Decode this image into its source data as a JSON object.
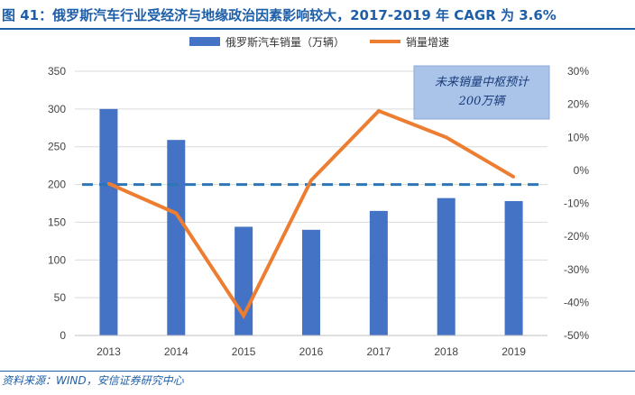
{
  "figure_title": "图 41：俄罗斯汽车行业受经济与地缘政治因素影响较大，2017-2019 年 CAGR 为 3.6%",
  "source": "资料来源：WIND，安信证券研究中心",
  "chart_data": {
    "type": "bar",
    "categories": [
      "2013",
      "2014",
      "2015",
      "2016",
      "2017",
      "2018",
      "2019"
    ],
    "series": [
      {
        "name": "俄罗斯汽车销量（万辆）",
        "type": "bar",
        "axis": "left",
        "color": "#4472c4",
        "values": [
          300,
          259,
          144,
          140,
          165,
          182,
          178
        ]
      },
      {
        "name": "销量增速",
        "type": "line",
        "axis": "right",
        "color": "#ed7d31",
        "values": [
          -4,
          -13,
          -44,
          -3,
          18,
          10,
          -2
        ]
      }
    ],
    "y_left": {
      "min": 0,
      "max": 350,
      "step": 50
    },
    "y_right": {
      "min": -50,
      "max": 30,
      "step": 10,
      "unit": "%"
    },
    "reference_line": {
      "value": 200,
      "axis": "left",
      "style": "dashed",
      "color": "#2e75b6"
    },
    "annotation": {
      "lines": [
        "未来销量中枢预计",
        "200万辆"
      ],
      "fill": "#a9c4e8"
    },
    "legend_position": "top",
    "grid": true
  }
}
